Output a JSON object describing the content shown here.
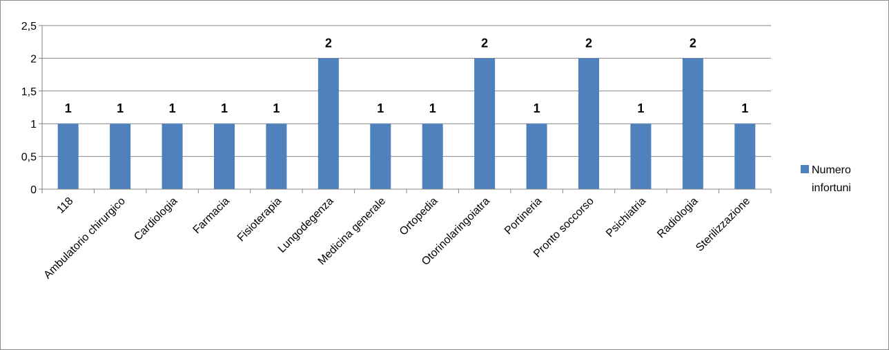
{
  "chart_data": {
    "type": "bar",
    "categories": [
      "118",
      "Ambulatorio chirurgico",
      "Cardiologia",
      "Farmacia",
      "Fisioterapia",
      "Lungodegenza",
      "Medicina generale",
      "Ortopedia",
      "Otorinolaringoiatra",
      "Portineria",
      "Pronto soccorso",
      "Psichiatria",
      "Radiologia",
      "Sterilizzazione"
    ],
    "series": [
      {
        "name": "Numero infortuni",
        "values": [
          1,
          1,
          1,
          1,
          1,
          2,
          1,
          1,
          2,
          1,
          2,
          1,
          2,
          1
        ]
      }
    ],
    "data_labels": [
      "1",
      "1",
      "1",
      "1",
      "1",
      "2",
      "1",
      "1",
      "2",
      "1",
      "2",
      "1",
      "2",
      "1"
    ],
    "y_ticks": [
      "0",
      "0,5",
      "1",
      "1,5",
      "2",
      "2,5"
    ],
    "y_tick_values": [
      0,
      0.5,
      1,
      1.5,
      2,
      2.5
    ],
    "ylim": [
      0,
      2.5
    ],
    "title": "",
    "xlabel": "",
    "ylabel": "",
    "grid": true,
    "legend": {
      "position": "right",
      "lines": [
        "Numero",
        "infortuni"
      ]
    },
    "colors": {
      "bar": "#4f81bd",
      "grid": "#868686",
      "axis": "#868686"
    }
  }
}
